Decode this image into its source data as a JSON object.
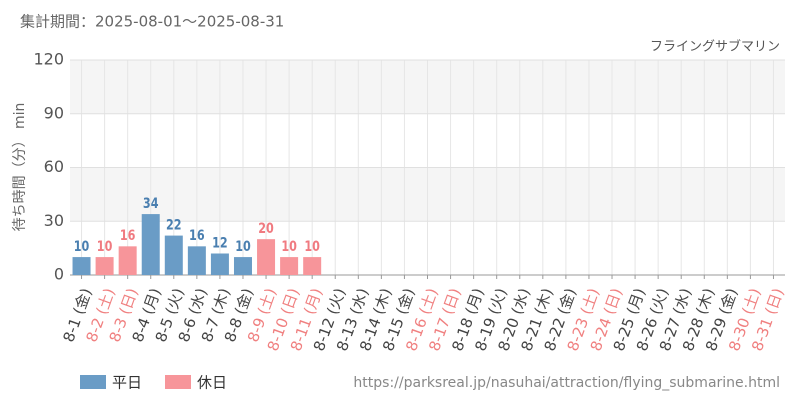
{
  "chart_data": {
    "type": "bar",
    "subtitle": "集計期間：2025-08-01～2025-08-31",
    "title": "フライングサブマリン",
    "y_label": "待ち時間（分） min",
    "source": "https://parksreal.jp/nasuhai/attraction/flying_submarine.html",
    "categories": [
      "8-1 (金)",
      "8-2 (土)",
      "8-3 (日)",
      "8-4 (月)",
      "8-5 (火)",
      "8-6 (水)",
      "8-7 (木)",
      "8-8 (金)",
      "8-9 (土)",
      "8-10 (日)",
      "8-11 (月)",
      "8-12 (火)",
      "8-13 (水)",
      "8-14 (木)",
      "8-15 (金)",
      "8-16 (土)",
      "8-17 (日)",
      "8-18 (月)",
      "8-19 (火)",
      "8-20 (水)",
      "8-21 (木)",
      "8-22 (金)",
      "8-23 (土)",
      "8-24 (日)",
      "8-25 (月)",
      "8-26 (火)",
      "8-27 (水)",
      "8-28 (木)",
      "8-29 (金)",
      "8-30 (土)",
      "8-31 (日)"
    ],
    "category_colors": [
      "#444",
      "#f08080",
      "#f08080",
      "#444",
      "#444",
      "#444",
      "#444",
      "#444",
      "#f08080",
      "#f08080",
      "#f08080",
      "#444",
      "#444",
      "#444",
      "#444",
      "#f08080",
      "#f08080",
      "#444",
      "#444",
      "#444",
      "#444",
      "#444",
      "#f08080",
      "#f08080",
      "#444",
      "#444",
      "#444",
      "#444",
      "#444",
      "#f08080",
      "#f08080"
    ],
    "series": [
      {
        "name": "平日",
        "color": "#6a9cc6",
        "label_color": "#4a7fb0",
        "values": [
          10,
          null,
          null,
          34,
          22,
          16,
          12,
          10,
          null,
          null,
          null,
          null,
          null,
          null,
          null,
          null,
          null,
          null,
          null,
          null,
          null,
          null,
          null,
          null,
          null,
          null,
          null,
          null,
          null,
          null,
          null
        ]
      },
      {
        "name": "休日",
        "color": "#f7959a",
        "label_color": "#f07a80",
        "values": [
          null,
          10,
          16,
          null,
          null,
          null,
          null,
          null,
          20,
          10,
          10,
          null,
          null,
          null,
          null,
          null,
          null,
          null,
          null,
          null,
          null,
          null,
          null,
          null,
          null,
          null,
          null,
          null,
          null,
          null,
          null
        ]
      }
    ],
    "ylim": [
      0,
      120
    ],
    "yticks": [
      0,
      30,
      60,
      90,
      120
    ],
    "grid": true
  }
}
